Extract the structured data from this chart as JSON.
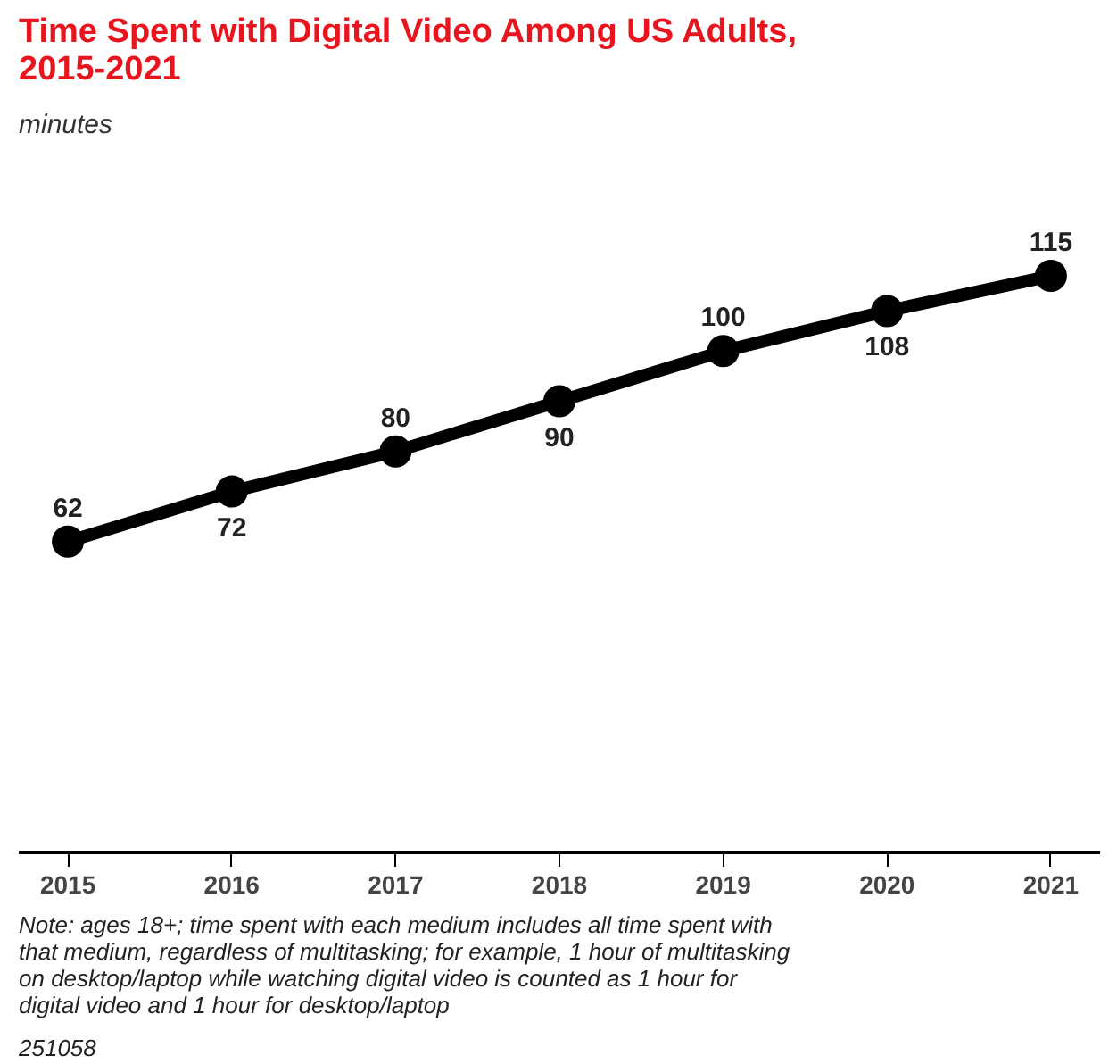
{
  "chart_data": {
    "type": "line",
    "title": "Time Spent with Digital Video Among US Adults,\n2015-2021",
    "subtitle": "minutes",
    "categories": [
      "2015",
      "2016",
      "2017",
      "2018",
      "2019",
      "2020",
      "2021"
    ],
    "series": [
      {
        "color": "#000000",
        "values": [
          62,
          72,
          80,
          90,
          100,
          108,
          115
        ]
      }
    ],
    "data_labels": true,
    "marker": "circle",
    "grid": false,
    "tick_labels": "x",
    "annotations": [
      "Note: ages 18+; time spent with each medium includes all time spent with\nthat medium, regardless of multitasking; for example, 1 hour of multitasking\non desktop/laptop while watching digital video is counted as 1 hour for\ndigital video and 1 hour for desktop/laptop",
      "251058"
    ]
  }
}
